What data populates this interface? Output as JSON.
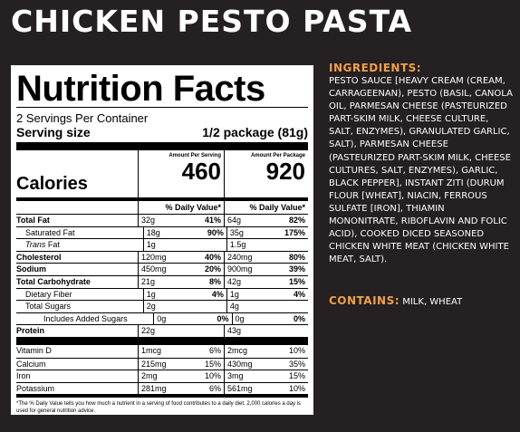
{
  "title": "CHICKEN PESTO PASTA",
  "nutrition": {
    "heading": "Nutrition Facts",
    "servings": "2 Servings Per Container",
    "serving_size_label": "Serving size",
    "serving_size_value": "1/2 package (81g)",
    "col1_head": "Amount Per Serving",
    "col2_head": "Amount Per Package",
    "calories_label": "Calories",
    "calories_1": "460",
    "calories_2": "920",
    "dv_head": "% Daily Value*",
    "rows": [
      {
        "label": "Total Fat",
        "a1": "32g",
        "p1": "41%",
        "a2": "64g",
        "p2": "82%"
      },
      {
        "label": "Saturated Fat",
        "a1": "18g",
        "p1": "90%",
        "a2": "35g",
        "p2": "175%"
      },
      {
        "label_italic": "Trans",
        "label": "Fat",
        "a1": "1g",
        "p1": "",
        "a2": "1.5g",
        "p2": ""
      },
      {
        "label": "Cholesterol",
        "a1": "120mg",
        "p1": "40%",
        "a2": "240mg",
        "p2": "80%"
      },
      {
        "label": "Sodium",
        "a1": "450mg",
        "p1": "20%",
        "a2": "900mg",
        "p2": "39%"
      },
      {
        "label": "Total Carbohydrate",
        "a1": "21g",
        "p1": "8%",
        "a2": "42g",
        "p2": "15%"
      },
      {
        "label": "Dietary Fiber",
        "a1": "1g",
        "p1": "4%",
        "a2": "1g",
        "p2": "4%"
      },
      {
        "label": "Total Sugars",
        "a1": "2g",
        "p1": "",
        "a2": "4g",
        "p2": ""
      },
      {
        "label": "Includes Added Sugars",
        "a1": "0g",
        "p1": "0%",
        "a2": "0g",
        "p2": "0%"
      },
      {
        "label": "Protein",
        "a1": "22g",
        "p1": "",
        "a2": "43g",
        "p2": ""
      }
    ],
    "vitamins": [
      {
        "label": "Vitamin D",
        "a1": "1mcg",
        "p1": "6%",
        "a2": "2mcg",
        "p2": "10%"
      },
      {
        "label": "Calcium",
        "a1": "215mg",
        "p1": "15%",
        "a2": "430mg",
        "p2": "35%"
      },
      {
        "label": "Iron",
        "a1": "2mg",
        "p1": "10%",
        "a2": "3mg",
        "p2": "15%"
      },
      {
        "label": "Potassium",
        "a1": "281mg",
        "p1": "6%",
        "a2": "561mg",
        "p2": "10%"
      }
    ],
    "footnote": "*The % Daily Value tells you how much a nutrient in a serving of food contributes to a daily diet. 2,000 calories a day is used for general nutrition advice."
  },
  "ingredients": {
    "heading": "INGREDIENTS:",
    "text": "Pesto sauce [heavy cream (cream, carrageenan), pesto (basil, canola oil, parmesan cheese (pasteurized part-skim milk, cheese culture, salt, enzymes), granulated garlic, salt), parmesan cheese (pasteurized part-skim milk, cheese cultures, salt, enzymes), garlic, black pepper], instant ziti (durum flour [wheat], niacin, ferrous sulfate [iron], thiamin mononitrate, riboflavin and folic acid), cooked diced seasoned chicken white meat (chicken white meat, salt)."
  },
  "contains": {
    "label": "CONTAINS:",
    "value": "MILK, WHEAT"
  },
  "colors": {
    "background": "#252021",
    "accent": "#f0a04a",
    "text": "#ffffff"
  }
}
